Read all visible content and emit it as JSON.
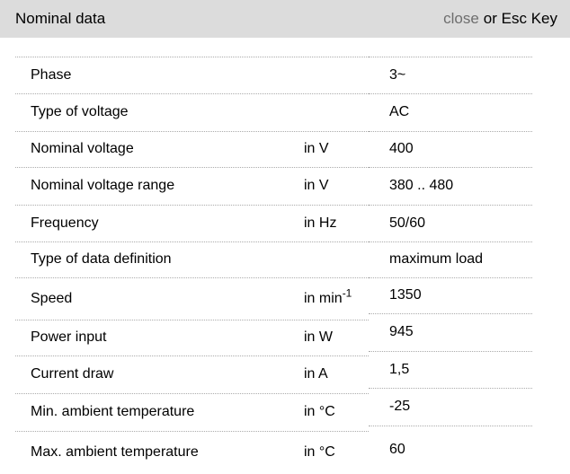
{
  "header": {
    "title": "Nominal data",
    "close_label": "close",
    "esc_label": "or Esc Key"
  },
  "table": {
    "rows": [
      {
        "label": "Phase",
        "unit": "",
        "value": "3~"
      },
      {
        "label": "Type of voltage",
        "unit": "",
        "value": "AC"
      },
      {
        "label": "Nominal voltage",
        "unit": "in V",
        "value": "400"
      },
      {
        "label": "Nominal voltage range",
        "unit": "in V",
        "value": "380 .. 480"
      },
      {
        "label": "Frequency",
        "unit": "in Hz",
        "value": "50/60"
      },
      {
        "label": "Type of data definition",
        "unit": "",
        "value": "maximum load"
      },
      {
        "label": "Speed",
        "unit": "in min",
        "unit_sup": "-1",
        "value": "1350"
      },
      {
        "label": "Power input",
        "unit": "in W",
        "value": "945"
      },
      {
        "label": "Current draw",
        "unit": "in A",
        "value": "1,5"
      },
      {
        "label": "Min. ambient temperature",
        "unit": "in °C",
        "value": "-25"
      },
      {
        "label": "Max. ambient temperature",
        "unit": "in °C",
        "value": "60"
      }
    ]
  },
  "colors": {
    "header_bg": "#dcdcdc",
    "close_link": "#6e6e6e",
    "divider": "#ababab",
    "text": "#000000"
  }
}
